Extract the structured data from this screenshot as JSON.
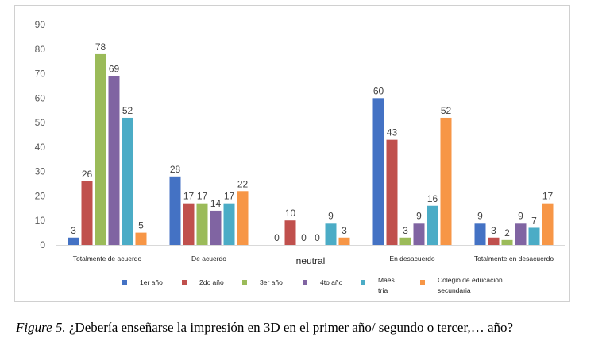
{
  "chart_data": {
    "type": "bar",
    "categories": [
      "Totalmente de acuerdo",
      "De acuerdo",
      "neutral",
      "En desacuerdo",
      "Totalmente en desacuerdo"
    ],
    "series": [
      {
        "name": "1er año",
        "color": "#4472c4",
        "values": [
          3,
          28,
          0,
          60,
          9
        ]
      },
      {
        "name": "2do año",
        "color": "#c0504d",
        "values": [
          26,
          17,
          10,
          43,
          3
        ]
      },
      {
        "name": "3er año",
        "color": "#9bbb59",
        "values": [
          78,
          17,
          0,
          3,
          2
        ]
      },
      {
        "name": "4to año",
        "color": "#8064a2",
        "values": [
          69,
          14,
          0,
          9,
          9
        ]
      },
      {
        "name": "Maestría",
        "color": "#4bacc6",
        "values": [
          52,
          17,
          9,
          16,
          7
        ]
      },
      {
        "name": "Colegio de educación secundaria",
        "color": "#f79646",
        "values": [
          5,
          22,
          3,
          52,
          17
        ]
      }
    ],
    "legend_labels": [
      [
        "1er año"
      ],
      [
        "2do año"
      ],
      [
        "3er año"
      ],
      [
        "4to año"
      ],
      [
        "Maes",
        "tría"
      ],
      [
        "Colegio de educación",
        "secundaria"
      ]
    ],
    "yticks": [
      0,
      10,
      20,
      30,
      40,
      50,
      60,
      70,
      80,
      90
    ],
    "ylim": [
      0,
      90
    ],
    "grid": false,
    "legend_position": "bottom"
  },
  "caption": {
    "figure_label": "Figure 5.",
    "text": " ¿Debería enseñarse la impresión en 3D en el primer año/ segundo o tercer,… año?"
  }
}
